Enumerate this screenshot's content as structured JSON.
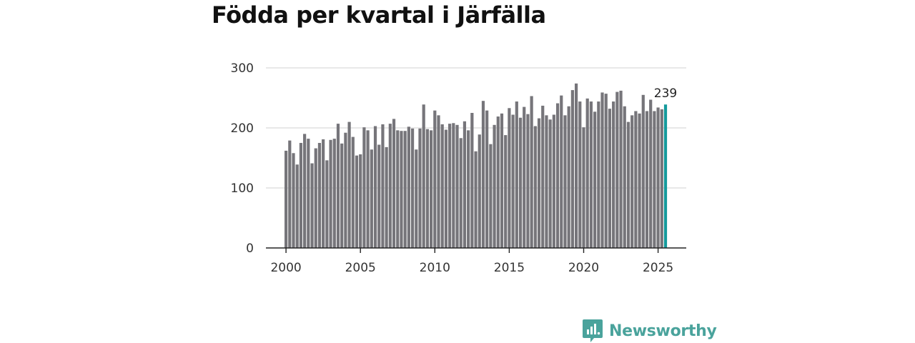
{
  "title": "Födda per kvartal i Järfälla",
  "brand": {
    "name": "Newsworthy",
    "color": "#4aa39c"
  },
  "colors": {
    "bar": "#76757a",
    "highlight": "#159a9c",
    "grid": "#d9d9d9",
    "axis": "#222222"
  },
  "chart_data": {
    "type": "bar",
    "title": "Födda per kvartal i Järfälla",
    "xlabel": "",
    "ylabel": "",
    "ylim": [
      0,
      300
    ],
    "yticks": [
      "0",
      "100",
      "200",
      "300"
    ],
    "xticks": [
      "2000",
      "2005",
      "2010",
      "2015",
      "2020",
      "2025"
    ],
    "grid": true,
    "start_year": 2000,
    "annotation": {
      "label": "239",
      "index": 102
    },
    "values": [
      162,
      179,
      158,
      139,
      175,
      190,
      182,
      141,
      166,
      175,
      181,
      146,
      180,
      182,
      207,
      174,
      192,
      210,
      185,
      154,
      156,
      201,
      196,
      164,
      203,
      172,
      206,
      168,
      207,
      215,
      196,
      195,
      195,
      202,
      199,
      164,
      199,
      239,
      198,
      196,
      229,
      221,
      206,
      197,
      207,
      208,
      205,
      183,
      211,
      196,
      225,
      161,
      189,
      245,
      229,
      173,
      205,
      219,
      224,
      188,
      233,
      222,
      244,
      217,
      235,
      223,
      253,
      203,
      216,
      237,
      221,
      214,
      222,
      241,
      254,
      221,
      236,
      263,
      274,
      244,
      201,
      249,
      244,
      227,
      244,
      259,
      257,
      232,
      244,
      260,
      262,
      236,
      210,
      221,
      228,
      224,
      255,
      228,
      247,
      228,
      234,
      231,
      239
    ]
  }
}
